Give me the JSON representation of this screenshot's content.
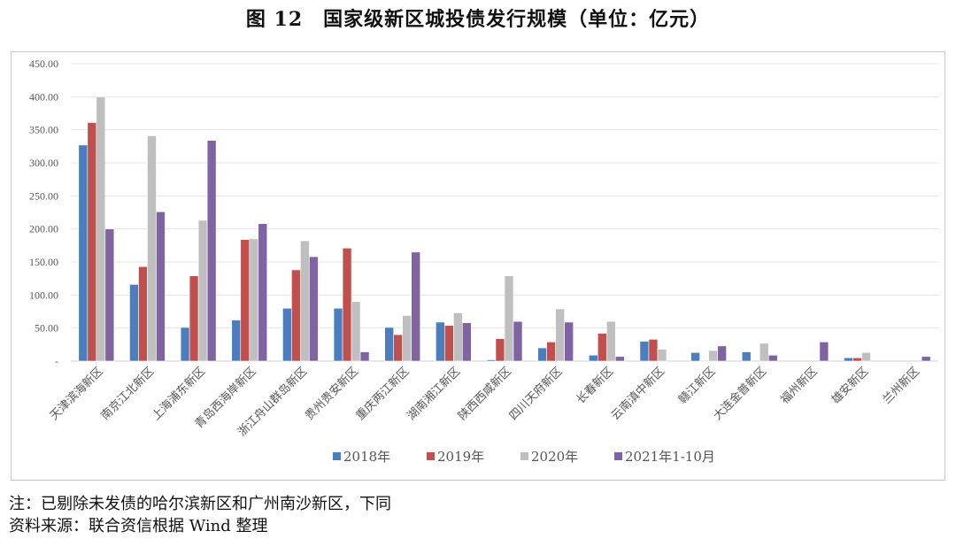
{
  "title": "图 12　国家级新区城投债发行规模（单位：亿元）",
  "notes": {
    "note": "注：已剔除未发债的哈尔滨新区和广州南沙新区，下同",
    "source": "资料来源：联合资信根据 Wind 整理"
  },
  "chart_data": {
    "type": "bar",
    "title": "国家级新区城投债发行规模（单位：亿元）",
    "xlabel": "",
    "ylabel": "亿元",
    "ylim": [
      0,
      450
    ],
    "yticks": [
      0,
      50,
      100,
      150,
      200,
      250,
      300,
      350,
      400,
      450
    ],
    "ytick_labels": [
      "-",
      "50.00",
      "100.00",
      "150.00",
      "200.00",
      "250.00",
      "300.00",
      "350.00",
      "400.00",
      "450.00"
    ],
    "grid": true,
    "legend_position": "bottom",
    "categories": [
      "天津滨海新区",
      "南京江北新区",
      "上海浦东新区",
      "青岛西海岸新区",
      "浙江舟山群岛新区",
      "贵州贵安新区",
      "重庆两江新区",
      "湖南湘江新区",
      "陕西西咸新区",
      "四川天府新区",
      "长春新区",
      "云南滇中新区",
      "赣江新区",
      "大连金普新区",
      "福州新区",
      "雄安新区",
      "兰州新区"
    ],
    "series": [
      {
        "name": "2018年",
        "color": "#4a7ebf",
        "values": [
          327,
          116,
          51,
          62,
          80,
          80,
          51,
          59,
          2,
          20,
          9,
          30,
          13,
          14,
          0,
          5,
          0
        ]
      },
      {
        "name": "2019年",
        "color": "#c0504d",
        "values": [
          361,
          143,
          129,
          184,
          138,
          171,
          40,
          54,
          34,
          29,
          42,
          33,
          1,
          0,
          0,
          5,
          0
        ]
      },
      {
        "name": "2020年",
        "color": "#bfbfbf",
        "values": [
          400,
          341,
          213,
          185,
          182,
          90,
          69,
          73,
          129,
          79,
          60,
          18,
          16,
          27,
          0,
          13,
          0
        ]
      },
      {
        "name": "2021年1-10月",
        "color": "#8064a2",
        "values": [
          200,
          226,
          334,
          208,
          158,
          14,
          165,
          58,
          60,
          59,
          7,
          0,
          23,
          9,
          29,
          0,
          7
        ]
      }
    ]
  }
}
